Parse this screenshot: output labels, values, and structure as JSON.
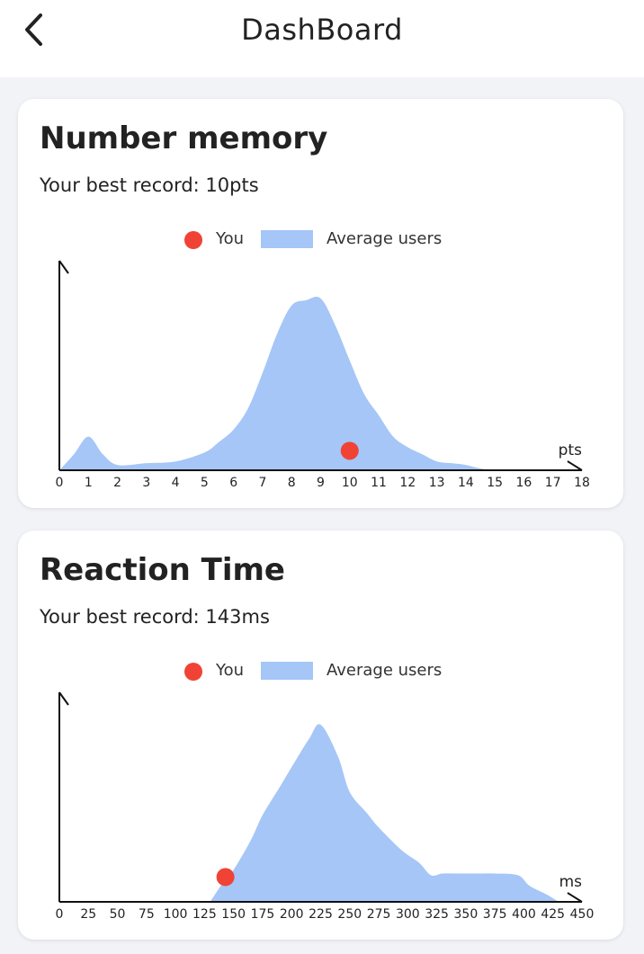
{
  "header": {
    "title": "DashBoard",
    "back_icon": "chevron-left-icon"
  },
  "colors": {
    "you": "#f04335",
    "average": "#a5c6f7",
    "axis": "#111111"
  },
  "legend": {
    "you_label": "You",
    "average_label": "Average users"
  },
  "cards": [
    {
      "title": "Number memory",
      "record": "Your best record: 10pts",
      "chart_data": {
        "type": "area",
        "unit_label": "pts",
        "x_ticks": [
          0,
          1,
          2,
          3,
          4,
          5,
          6,
          7,
          8,
          9,
          10,
          11,
          12,
          13,
          14,
          15,
          16,
          17,
          18
        ],
        "xlim": [
          0,
          18
        ],
        "ylim": [
          0,
          100
        ],
        "series": [
          {
            "name": "Average users",
            "x": [
              0,
              0.5,
              1,
              1.5,
              2,
              3,
              4,
              5,
              5.5,
              6,
              6.5,
              7,
              7.5,
              8,
              8.5,
              9,
              9.5,
              10,
              10.5,
              11,
              11.5,
              12,
              12.5,
              13,
              13.5,
              14,
              14.5,
              15
            ],
            "y": [
              0,
              9,
              19,
              9,
              3,
              4,
              5,
              10,
              16,
              23,
              35,
              55,
              77,
              93,
              96,
              97,
              82,
              62,
              43,
              31,
              19,
              13,
              9,
              5,
              4,
              3,
              1,
              0
            ]
          },
          {
            "name": "You",
            "x": [
              10
            ],
            "y": [
              11
            ]
          }
        ]
      }
    },
    {
      "title": "Reaction Time",
      "record": "Your best record: 143ms",
      "chart_data": {
        "type": "area",
        "unit_label": "ms",
        "x_ticks": [
          0,
          25,
          50,
          75,
          100,
          125,
          150,
          175,
          200,
          225,
          250,
          275,
          300,
          325,
          350,
          375,
          400,
          425,
          450
        ],
        "xlim": [
          0,
          450
        ],
        "ylim": [
          0,
          100
        ],
        "series": [
          {
            "name": "Average users",
            "x": [
              130,
              140,
              150,
              165,
              175,
              190,
              200,
              215,
              225,
              240,
              250,
              265,
              275,
              295,
              310,
              320,
              330,
              345,
              360,
              375,
              395,
              405,
              420,
              430
            ],
            "y": [
              0,
              10,
              18,
              35,
              49,
              65,
              76,
              92,
              100,
              82,
              62,
              50,
              42,
              29,
              22,
              15,
              16,
              16,
              16,
              16,
              15,
              9,
              4,
              0
            ]
          },
          {
            "name": "You",
            "x": [
              143
            ],
            "y": [
              14
            ]
          }
        ]
      }
    }
  ]
}
